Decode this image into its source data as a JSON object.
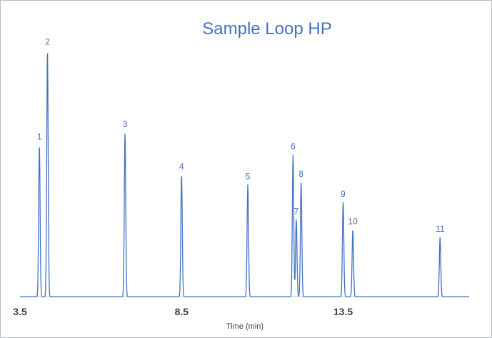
{
  "chart_data": {
    "type": "line",
    "title": "Sample Loop HP",
    "xlabel": "Time (min)",
    "ylabel": "",
    "xlim": [
      3.5,
      17.4
    ],
    "ylim": [
      0,
      100
    ],
    "xticks": [
      "3.5",
      "8.5",
      "13.5"
    ],
    "grid": false,
    "legend": "none",
    "color": "#4472c4",
    "series": [
      {
        "peaks": [
          {
            "label": "1",
            "x": 4.1,
            "y": 61
          },
          {
            "label": "2",
            "x": 4.35,
            "y": 99
          },
          {
            "label": "3",
            "x": 6.75,
            "y": 66
          },
          {
            "label": "4",
            "x": 8.5,
            "y": 49
          },
          {
            "label": "5",
            "x": 10.55,
            "y": 45
          },
          {
            "label": "6",
            "x": 11.95,
            "y": 57
          },
          {
            "label": "7",
            "x": 12.05,
            "y": 31
          },
          {
            "label": "8",
            "x": 12.2,
            "y": 46
          },
          {
            "label": "9",
            "x": 13.5,
            "y": 38
          },
          {
            "label": "10",
            "x": 13.8,
            "y": 27
          },
          {
            "label": "11",
            "x": 16.5,
            "y": 24
          }
        ]
      }
    ]
  }
}
